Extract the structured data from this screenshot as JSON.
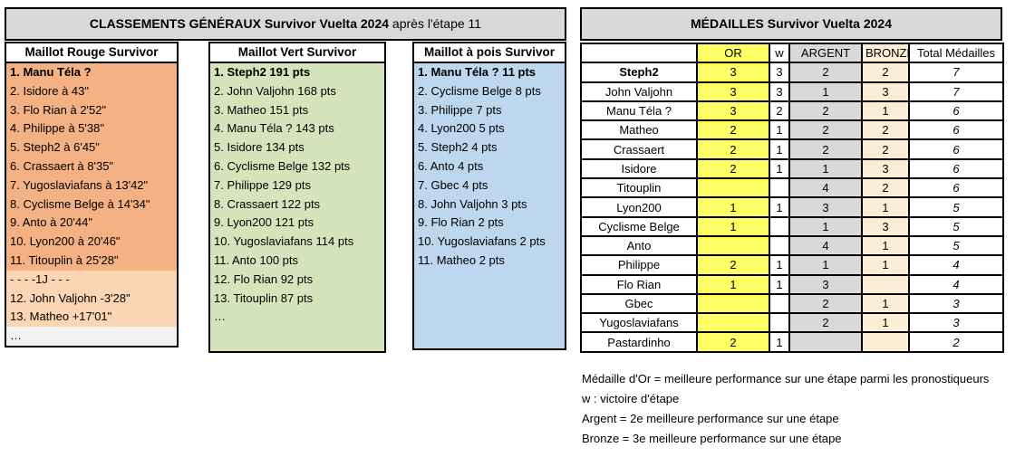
{
  "colors": {
    "title-bg": "#D9D9D9",
    "rouge-dark": "#F4B183",
    "rouge-light": "#FBD5B4",
    "row-gray": "#F2F2F2",
    "vert": "#D6E4BC",
    "pois": "#BDD7EE",
    "or": "#FFFF66",
    "argent": "#D9D9D9",
    "bronze": "#FCEDD5"
  },
  "classements": {
    "title_main": "CLASSEMENTS GÉNÉRAUX Survivor Vuelta 2024",
    "title_suffix": " après l'étape 11",
    "tables": [
      {
        "header": "Maillot Rouge Survivor",
        "rows": [
          {
            "text": "1. Manu Téla ?",
            "bold": true
          },
          {
            "text": "2. Isidore à 43\""
          },
          {
            "text": "3. Flo Rian à 2'52\""
          },
          {
            "text": "4. Philippe à 5'38\""
          },
          {
            "text": "5. Steph2 à 6'45\""
          },
          {
            "text": "6. Crassaert à 8'35\""
          },
          {
            "text": "7. Yugoslaviafans à 13'42\""
          },
          {
            "text": "8. Cyclisme Belge à 14'34\""
          },
          {
            "text": "9. Anto à 20'44\""
          },
          {
            "text": "10. Lyon200 à 20'46\""
          },
          {
            "text": "11. Titouplin à 25'28\""
          },
          {
            "text": "- - - -1J - - -",
            "variant": "light"
          },
          {
            "text": "12. John Valjohn -3'28\"",
            "variant": "light"
          },
          {
            "text": "13. Matheo +17'01\"",
            "variant": "light"
          },
          {
            "text": "…",
            "variant": "gray"
          }
        ]
      },
      {
        "header": "Maillot Vert Survivor",
        "rows": [
          {
            "text": "1. Steph2 191 pts",
            "bold": true
          },
          {
            "text": "2. John Valjohn 168 pts"
          },
          {
            "text": "3. Matheo 151 pts"
          },
          {
            "text": "4. Manu Téla ? 143 pts"
          },
          {
            "text": "5. Isidore 134 pts"
          },
          {
            "text": "6. Cyclisme Belge 132 pts"
          },
          {
            "text": "7. Philippe 129 pts"
          },
          {
            "text": "8. Crassaert 122 pts"
          },
          {
            "text": "9. Lyon200 121 pts"
          },
          {
            "text": "10. Yugoslaviafans 114 pts"
          },
          {
            "text": "11. Anto 100 pts"
          },
          {
            "text": "12. Flo Rian 92 pts"
          },
          {
            "text": "13. Titouplin 87 pts"
          },
          {
            "text": "…"
          }
        ]
      },
      {
        "header": "Maillot à pois Survivor",
        "rows": [
          {
            "text": "1. Manu Téla ? 11 pts",
            "bold": true
          },
          {
            "text": "2. Cyclisme Belge 8 pts"
          },
          {
            "text": "3. Philippe 7 pts"
          },
          {
            "text": "4. Lyon200 5 pts"
          },
          {
            "text": "5. Steph2 4 pts"
          },
          {
            "text": "6. Anto 4 pts"
          },
          {
            "text": "7. Gbec 4 pts"
          },
          {
            "text": "8. John Valjohn 3 pts"
          },
          {
            "text": "9. Flo Rian 2 pts"
          },
          {
            "text": "10. Yugoslaviafans 2 pts"
          },
          {
            "text": "11. Matheo 2 pts"
          }
        ]
      }
    ]
  },
  "medailles": {
    "title": "MÉDAILLES Survivor Vuelta 2024",
    "columns": {
      "name": "",
      "or": "OR",
      "w": "w",
      "argent": "ARGENT",
      "bronze": "BRONZE",
      "total": "Total Médailles"
    },
    "rows": [
      {
        "name": "Steph2",
        "bold": true,
        "or": "3",
        "w": "3",
        "argent": "2",
        "bronze": "2",
        "total": "7"
      },
      {
        "name": "John Valjohn",
        "or": "3",
        "w": "3",
        "argent": "1",
        "bronze": "3",
        "total": "7"
      },
      {
        "name": "Manu Téla ?",
        "or": "3",
        "w": "2",
        "argent": "2",
        "bronze": "1",
        "total": "6"
      },
      {
        "name": "Matheo",
        "or": "2",
        "w": "1",
        "argent": "2",
        "bronze": "2",
        "total": "6"
      },
      {
        "name": "Crassaert",
        "or": "2",
        "w": "1",
        "argent": "2",
        "bronze": "2",
        "total": "6"
      },
      {
        "name": "Isidore",
        "or": "2",
        "w": "1",
        "argent": "1",
        "bronze": "3",
        "total": "6"
      },
      {
        "name": "Titouplin",
        "or": "",
        "w": "",
        "argent": "4",
        "bronze": "2",
        "total": "6"
      },
      {
        "name": "Lyon200",
        "or": "1",
        "w": "1",
        "argent": "3",
        "bronze": "1",
        "total": "5"
      },
      {
        "name": "Cyclisme Belge",
        "or": "1",
        "w": "",
        "argent": "1",
        "bronze": "3",
        "total": "5"
      },
      {
        "name": "Anto",
        "or": "",
        "w": "",
        "argent": "4",
        "bronze": "1",
        "total": "5"
      },
      {
        "name": "Philippe",
        "or": "2",
        "w": "1",
        "argent": "1",
        "bronze": "1",
        "total": "4"
      },
      {
        "name": "Flo Rian",
        "or": "1",
        "w": "1",
        "argent": "3",
        "bronze": "",
        "total": "4"
      },
      {
        "name": "Gbec",
        "or": "",
        "w": "",
        "argent": "2",
        "bronze": "1",
        "total": "3"
      },
      {
        "name": "Yugoslaviafans",
        "or": "",
        "w": "",
        "argent": "2",
        "bronze": "1",
        "total": "3"
      },
      {
        "name": "Pastardinho",
        "or": "2",
        "w": "1",
        "argent": "",
        "bronze": "",
        "total": "2"
      }
    ]
  },
  "legend": {
    "lines": [
      "Médaille d'Or = meilleure performance sur une étape parmi les pronostiqueurs",
      "w : victoire d'étape",
      "Argent = 2e meilleure performance sur une étape",
      "Bronze = 3e meilleure performance sur une étape"
    ]
  }
}
